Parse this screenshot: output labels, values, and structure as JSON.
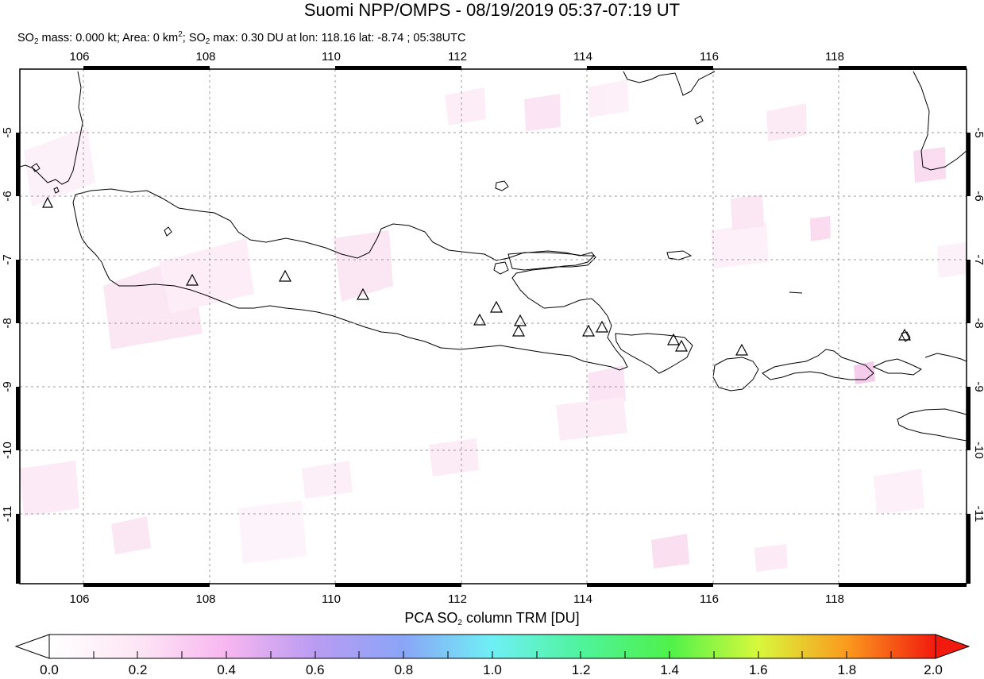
{
  "title": "Suomi NPP/OMPS - 08/19/2019 05:37-07:19 UT",
  "subtitle": {
    "mass_label": "SO",
    "mass_text": " mass: 0.000 kt; Area: 0 km",
    "area_sup": "2",
    "max_label": "; SO",
    "max_text": " max: 0.30 DU at lon: 118.16 lat: -8.74 ; 05:38UTC",
    "sub": "2"
  },
  "map": {
    "lon_range": [
      105,
      120
    ],
    "lat_range": [
      -12.1,
      -4
    ],
    "lon_ticks": [
      "106",
      "108",
      "110",
      "112",
      "114",
      "116",
      "118"
    ],
    "lat_ticks": [
      "-5",
      "-6",
      "-7",
      "-8",
      "-9",
      "-10",
      "-11"
    ],
    "volcano_icon": "triangle-icon"
  },
  "colorbar": {
    "title_pre": "PCA SO",
    "title_sub": "2",
    "title_post": " column TRM [DU]",
    "labels": [
      "0.0",
      "0.2",
      "0.4",
      "0.6",
      "0.8",
      "1.0",
      "1.2",
      "1.4",
      "1.6",
      "1.8",
      "2.0"
    ],
    "range": [
      0,
      2
    ]
  }
}
